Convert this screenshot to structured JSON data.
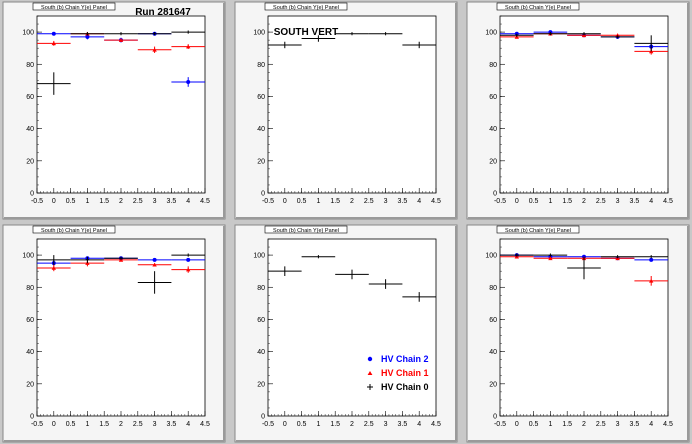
{
  "page": {
    "run_label": "Run 281647",
    "panel_title": "South (b) Chain Y(e) Panel"
  },
  "colors": {
    "background": "#c8c8c8",
    "frame": "#f5f5f5",
    "chain2": "#0000ff",
    "chain1": "#ff0000",
    "chain0": "#000000"
  },
  "legend": {
    "entries": [
      {
        "label": "HV Chain 2",
        "series": "chain2"
      },
      {
        "label": "HV Chain 1",
        "series": "chain1"
      },
      {
        "label": "HV Chain 0",
        "series": "chain0"
      }
    ]
  },
  "chart_data": [
    {
      "type": "scatter",
      "title": "South (b) Chain Y(e) Panel",
      "annotation": "Run 281647",
      "xlim": [
        -0.5,
        4.5
      ],
      "ylim": [
        0,
        110
      ],
      "xticks": [
        -0.5,
        0,
        0.5,
        1,
        1.5,
        2,
        2.5,
        3,
        3.5,
        4,
        4.5
      ],
      "yticks": [
        0,
        20,
        40,
        60,
        80,
        100
      ],
      "series": [
        {
          "name": "HV Chain 2",
          "color": "#0000ff",
          "marker": "circle",
          "points": [
            {
              "x": 0,
              "y": 99,
              "err": 1
            },
            {
              "x": 1,
              "y": 97,
              "err": 1.5
            },
            {
              "x": 2,
              "y": 95,
              "err": 1.5
            },
            {
              "x": 3,
              "y": 99,
              "err": 1
            },
            {
              "x": 4,
              "y": 69,
              "err": 3
            }
          ]
        },
        {
          "name": "HV Chain 1",
          "color": "#ff0000",
          "marker": "triangle",
          "points": [
            {
              "x": 0,
              "y": 93,
              "err": 1.5
            },
            {
              "x": 1,
              "y": 99,
              "err": 1
            },
            {
              "x": 2,
              "y": 95,
              "err": 1
            },
            {
              "x": 3,
              "y": 89,
              "err": 2
            },
            {
              "x": 4,
              "y": 91,
              "err": 1.5
            }
          ]
        },
        {
          "name": "HV Chain 0",
          "color": "#000000",
          "marker": "cross",
          "points": [
            {
              "x": 0,
              "y": 68,
              "err": 7
            },
            {
              "x": 1,
              "y": 99,
              "err": 1
            },
            {
              "x": 2,
              "y": 99,
              "err": 1
            },
            {
              "x": 3,
              "y": 99,
              "err": 1
            },
            {
              "x": 4,
              "y": 100,
              "err": 1
            }
          ]
        }
      ]
    },
    {
      "type": "scatter",
      "title": "South (b) Chain Y(e) Panel",
      "annotation": "SOUTH VERT",
      "xlim": [
        -0.5,
        4.5
      ],
      "ylim": [
        0,
        110
      ],
      "xticks": [
        -0.5,
        0,
        0.5,
        1,
        1.5,
        2,
        2.5,
        3,
        3.5,
        4,
        4.5
      ],
      "yticks": [
        0,
        20,
        40,
        60,
        80,
        100
      ],
      "series": [
        {
          "name": "HV Chain 0",
          "color": "#000000",
          "marker": "cross",
          "points": [
            {
              "x": 0,
              "y": 92,
              "err": 2
            },
            {
              "x": 1,
              "y": 96,
              "err": 2
            },
            {
              "x": 2,
              "y": 99,
              "err": 1
            },
            {
              "x": 3,
              "y": 99,
              "err": 1
            },
            {
              "x": 4,
              "y": 92,
              "err": 2
            }
          ]
        }
      ]
    },
    {
      "type": "scatter",
      "title": "South (b) Chain Y(e) Panel",
      "xlim": [
        -0.5,
        4.5
      ],
      "ylim": [
        0,
        110
      ],
      "xticks": [
        -0.5,
        0,
        0.5,
        1,
        1.5,
        2,
        2.5,
        3,
        3.5,
        4,
        4.5
      ],
      "yticks": [
        0,
        20,
        40,
        60,
        80,
        100
      ],
      "series": [
        {
          "name": "HV Chain 2",
          "color": "#0000ff",
          "marker": "circle",
          "points": [
            {
              "x": 0,
              "y": 99,
              "err": 1
            },
            {
              "x": 1,
              "y": 100,
              "err": 1
            },
            {
              "x": 2,
              "y": 98,
              "err": 1
            },
            {
              "x": 3,
              "y": 97,
              "err": 1
            },
            {
              "x": 4,
              "y": 91,
              "err": 2
            }
          ]
        },
        {
          "name": "HV Chain 1",
          "color": "#ff0000",
          "marker": "triangle",
          "points": [
            {
              "x": 0,
              "y": 97,
              "err": 1
            },
            {
              "x": 1,
              "y": 99,
              "err": 1
            },
            {
              "x": 2,
              "y": 98,
              "err": 1
            },
            {
              "x": 3,
              "y": 98,
              "err": 1
            },
            {
              "x": 4,
              "y": 88,
              "err": 2
            }
          ]
        },
        {
          "name": "HV Chain 0",
          "color": "#000000",
          "marker": "cross",
          "points": [
            {
              "x": 0,
              "y": 98,
              "err": 1
            },
            {
              "x": 1,
              "y": 99,
              "err": 1
            },
            {
              "x": 2,
              "y": 99,
              "err": 1
            },
            {
              "x": 3,
              "y": 97,
              "err": 1
            },
            {
              "x": 4,
              "y": 93,
              "err": 5
            }
          ]
        }
      ]
    },
    {
      "type": "scatter",
      "title": "South (b) Chain Y(e) Panel",
      "xlim": [
        -0.5,
        4.5
      ],
      "ylim": [
        0,
        110
      ],
      "xticks": [
        -0.5,
        0,
        0.5,
        1,
        1.5,
        2,
        2.5,
        3,
        3.5,
        4,
        4.5
      ],
      "yticks": [
        0,
        20,
        40,
        60,
        80,
        100
      ],
      "series": [
        {
          "name": "HV Chain 2",
          "color": "#0000ff",
          "marker": "circle",
          "points": [
            {
              "x": 0,
              "y": 95,
              "err": 2
            },
            {
              "x": 1,
              "y": 98,
              "err": 1
            },
            {
              "x": 2,
              "y": 98,
              "err": 1
            },
            {
              "x": 3,
              "y": 97,
              "err": 1
            },
            {
              "x": 4,
              "y": 97,
              "err": 1
            }
          ]
        },
        {
          "name": "HV Chain 1",
          "color": "#ff0000",
          "marker": "triangle",
          "points": [
            {
              "x": 0,
              "y": 92,
              "err": 2
            },
            {
              "x": 1,
              "y": 95,
              "err": 2
            },
            {
              "x": 2,
              "y": 97,
              "err": 1
            },
            {
              "x": 3,
              "y": 94,
              "err": 1
            },
            {
              "x": 4,
              "y": 91,
              "err": 2
            }
          ]
        },
        {
          "name": "HV Chain 0",
          "color": "#000000",
          "marker": "cross",
          "points": [
            {
              "x": 0,
              "y": 97,
              "err": 3
            },
            {
              "x": 1,
              "y": 97,
              "err": 2
            },
            {
              "x": 2,
              "y": 98,
              "err": 1
            },
            {
              "x": 3,
              "y": 83,
              "err": 7
            },
            {
              "x": 4,
              "y": 100,
              "err": 1
            }
          ]
        }
      ]
    },
    {
      "type": "scatter",
      "title": "South (b) Chain Y(e) Panel",
      "xlim": [
        -0.5,
        4.5
      ],
      "ylim": [
        0,
        110
      ],
      "xticks": [
        -0.5,
        0,
        0.5,
        1,
        1.5,
        2,
        2.5,
        3,
        3.5,
        4,
        4.5
      ],
      "yticks": [
        0,
        20,
        40,
        60,
        80,
        100
      ],
      "legend": "bottom-right",
      "series": [
        {
          "name": "HV Chain 0",
          "color": "#000000",
          "marker": "cross",
          "points": [
            {
              "x": 0,
              "y": 90,
              "err": 3
            },
            {
              "x": 1,
              "y": 99,
              "err": 1
            },
            {
              "x": 2,
              "y": 88,
              "err": 3
            },
            {
              "x": 3,
              "y": 82,
              "err": 3
            },
            {
              "x": 4,
              "y": 74,
              "err": 3
            }
          ]
        }
      ]
    },
    {
      "type": "scatter",
      "title": "South (b) Chain Y(e) Panel",
      "xlim": [
        -0.5,
        4.5
      ],
      "ylim": [
        0,
        110
      ],
      "xticks": [
        -0.5,
        0,
        0.5,
        1,
        1.5,
        2,
        2.5,
        3,
        3.5,
        4,
        4.5
      ],
      "yticks": [
        0,
        20,
        40,
        60,
        80,
        100
      ],
      "series": [
        {
          "name": "HV Chain 2",
          "color": "#0000ff",
          "marker": "circle",
          "points": [
            {
              "x": 0,
              "y": 100,
              "err": 1
            },
            {
              "x": 1,
              "y": 99,
              "err": 1
            },
            {
              "x": 2,
              "y": 99,
              "err": 1
            },
            {
              "x": 3,
              "y": 98,
              "err": 1
            },
            {
              "x": 4,
              "y": 97,
              "err": 1
            }
          ]
        },
        {
          "name": "HV Chain 1",
          "color": "#ff0000",
          "marker": "triangle",
          "points": [
            {
              "x": 0,
              "y": 99,
              "err": 1
            },
            {
              "x": 1,
              "y": 98,
              "err": 1
            },
            {
              "x": 2,
              "y": 98,
              "err": 1
            },
            {
              "x": 3,
              "y": 98,
              "err": 1
            },
            {
              "x": 4,
              "y": 84,
              "err": 3
            }
          ]
        },
        {
          "name": "HV Chain 0",
          "color": "#000000",
          "marker": "cross",
          "points": [
            {
              "x": 0,
              "y": 100,
              "err": 1
            },
            {
              "x": 1,
              "y": 100,
              "err": 1
            },
            {
              "x": 2,
              "y": 92,
              "err": 7
            },
            {
              "x": 3,
              "y": 99,
              "err": 1
            },
            {
              "x": 4,
              "y": 99,
              "err": 1
            }
          ]
        }
      ]
    }
  ]
}
